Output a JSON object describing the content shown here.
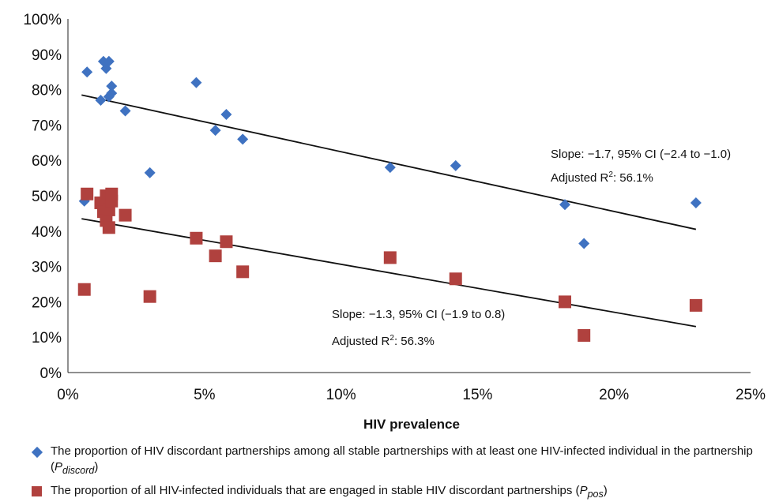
{
  "chart_data": {
    "type": "scatter",
    "xlabel": "HIV prevalence",
    "ylabel": "",
    "xlim": [
      0,
      25
    ],
    "ylim": [
      0,
      100
    ],
    "x_ticks": [
      "0%",
      "5%",
      "10%",
      "15%",
      "20%",
      "25%"
    ],
    "y_ticks": [
      "0%",
      "10%",
      "20%",
      "30%",
      "40%",
      "50%",
      "60%",
      "70%",
      "80%",
      "90%",
      "100%"
    ],
    "grid": false,
    "series": [
      {
        "name": "The proportion of HIV discordant partnerships among all stable partnerships with at least one HIV-infected individual in the partnership",
        "marker": "diamond",
        "color": "#3f72c1",
        "points": [
          [
            0.6,
            48.5
          ],
          [
            0.7,
            85
          ],
          [
            1.2,
            77
          ],
          [
            1.3,
            88
          ],
          [
            1.4,
            86
          ],
          [
            1.5,
            88
          ],
          [
            1.5,
            78
          ],
          [
            1.6,
            79
          ],
          [
            1.6,
            81
          ],
          [
            2.1,
            74
          ],
          [
            3.0,
            56.5
          ],
          [
            4.7,
            82
          ],
          [
            5.4,
            68.5
          ],
          [
            5.8,
            73
          ],
          [
            6.4,
            66
          ],
          [
            11.8,
            58
          ],
          [
            14.2,
            58.5
          ],
          [
            18.2,
            47.5
          ],
          [
            18.9,
            36.5
          ],
          [
            23.0,
            48
          ]
        ],
        "fit": [
          [
            0.5,
            78.5
          ],
          [
            23.0,
            40.5
          ]
        ]
      },
      {
        "name": "The proportion of all HIV-infected individuals that are engaged in stable HIV discordant partnerships",
        "marker": "square",
        "color": "#b0413e",
        "points": [
          [
            0.6,
            23.5
          ],
          [
            0.7,
            50.5
          ],
          [
            1.2,
            48
          ],
          [
            1.3,
            45.5
          ],
          [
            1.4,
            50
          ],
          [
            1.4,
            43
          ],
          [
            1.5,
            41
          ],
          [
            1.5,
            46
          ],
          [
            1.6,
            48.5
          ],
          [
            1.6,
            50.5
          ],
          [
            2.1,
            44.5
          ],
          [
            3.0,
            21.5
          ],
          [
            4.7,
            38
          ],
          [
            5.4,
            33
          ],
          [
            5.8,
            37
          ],
          [
            6.4,
            28.5
          ],
          [
            11.8,
            32.5
          ],
          [
            14.2,
            26.5
          ],
          [
            18.2,
            20
          ],
          [
            18.9,
            10.5
          ],
          [
            23.0,
            19
          ]
        ],
        "fit": [
          [
            0.5,
            43.5
          ],
          [
            23.0,
            13
          ]
        ]
      }
    ],
    "annotations": [
      {
        "series": 0,
        "line1": "Slope: −1.7, 95% CI (−2.4 to −1.0)",
        "line2_prefix": "Adjusted R",
        "line2_sup": "2",
        "line2_suffix": ": 56.1%"
      },
      {
        "series": 1,
        "line1": "Slope: −1.3, 95%  CI (−1.9 to 0.8)",
        "line2_prefix": "Adjusted R",
        "line2_sup": "2",
        "line2_suffix": ": 56.3%"
      }
    ]
  },
  "legend": {
    "items": [
      {
        "marker": "diamond",
        "text": "The proportion of HIV discordant partnerships among all stable partnerships with at least one HIV-infected individual in the partnership (",
        "symbol": "P",
        "subscript": "discord",
        "close": ")"
      },
      {
        "marker": "square",
        "text": "The proportion of all HIV-infected individuals that are engaged in stable HIV discordant partnerships (",
        "symbol": "P",
        "subscript": "pos",
        "close": ")"
      }
    ]
  }
}
